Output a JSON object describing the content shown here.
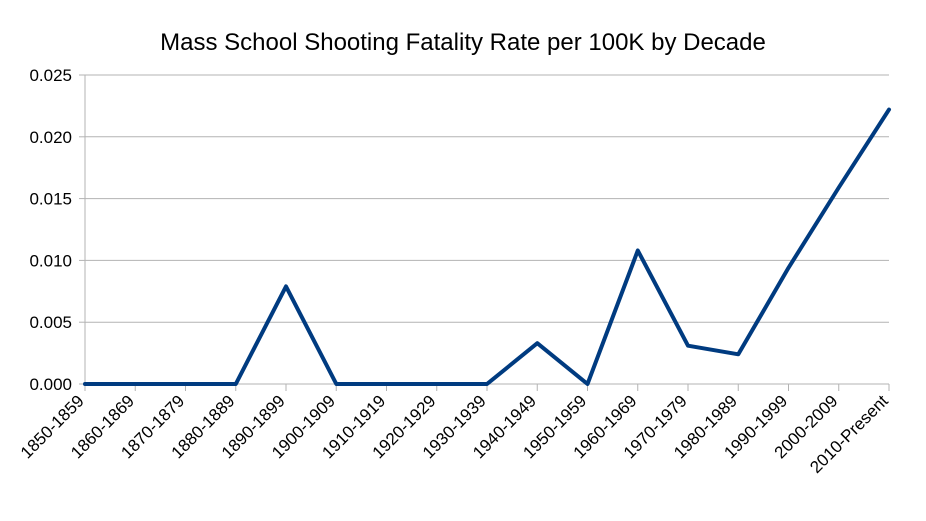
{
  "chart_data": {
    "type": "line",
    "title": "Mass School Shooting Fatality Rate per 100K by Decade",
    "xlabel": "",
    "ylabel": "",
    "categories": [
      "1850-1859",
      "1860-1869",
      "1870-1879",
      "1880-1889",
      "1890-1899",
      "1900-1909",
      "1910-1919",
      "1920-1929",
      "1930-1939",
      "1940-1949",
      "1950-1959",
      "1960-1969",
      "1970-1979",
      "1980-1989",
      "1990-1999",
      "2000-2009",
      "2010-Present"
    ],
    "series": [
      {
        "name": "Fatality Rate per 100K",
        "color": "#003b80",
        "values": [
          0,
          0,
          0,
          0,
          0.0079,
          0,
          0,
          0,
          0,
          0.0033,
          0,
          0.0108,
          0.0031,
          0.0024,
          0.0094,
          0.0159,
          0.0222
        ]
      }
    ],
    "ylim": [
      0,
      0.025
    ],
    "yticks": [
      0,
      0.005,
      0.01,
      0.015,
      0.02,
      0.025
    ],
    "ytick_labels": [
      "0.000",
      "0.005",
      "0.010",
      "0.015",
      "0.020",
      "0.025"
    ],
    "grid": true,
    "legend": "none"
  }
}
